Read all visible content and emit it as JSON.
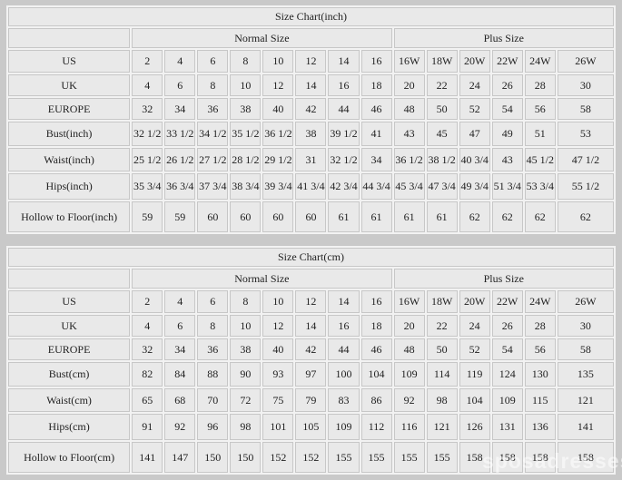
{
  "watermark": "sposadresses",
  "colors": {
    "page_background": "#c9c9c9",
    "data_cell_background": "#e9e9e9",
    "header_cell_background": "#f5f5f5",
    "grid_line": "#c7c7c7",
    "text": "#222222"
  },
  "tables": [
    {
      "title": "Size Chart(inch)",
      "group_headers": [
        "Normal Size",
        "Plus Size"
      ],
      "rows": [
        {
          "label": "US",
          "normal": [
            "2",
            "4",
            "6",
            "8",
            "10",
            "12",
            "14",
            "16"
          ],
          "plus": [
            "16W",
            "18W",
            "20W",
            "22W",
            "24W",
            "26W"
          ]
        },
        {
          "label": "UK",
          "normal": [
            "4",
            "6",
            "8",
            "10",
            "12",
            "14",
            "16",
            "18"
          ],
          "plus": [
            "20",
            "22",
            "24",
            "26",
            "28",
            "30"
          ]
        },
        {
          "label": "EUROPE",
          "normal": [
            "32",
            "34",
            "36",
            "38",
            "40",
            "42",
            "44",
            "46"
          ],
          "plus": [
            "48",
            "50",
            "52",
            "54",
            "56",
            "58"
          ]
        },
        {
          "label": "Bust(inch)",
          "normal": [
            "32 1/2",
            "33 1/2",
            "34 1/2",
            "35 1/2",
            "36 1/2",
            "38",
            "39 1/2",
            "41"
          ],
          "plus": [
            "43",
            "45",
            "47",
            "49",
            "51",
            "53"
          ]
        },
        {
          "label": "Waist(inch)",
          "normal": [
            "25 1/2",
            "26 1/2",
            "27 1/2",
            "28 1/2",
            "29 1/2",
            "31",
            "32 1/2",
            "34"
          ],
          "plus": [
            "36 1/2",
            "38 1/2",
            "40 3/4",
            "43",
            "45 1/2",
            "47 1/2"
          ]
        },
        {
          "label": "Hips(inch)",
          "normal": [
            "35 3/4",
            "36 3/4",
            "37 3/4",
            "38 3/4",
            "39 3/4",
            "41 3/4",
            "42 3/4",
            "44 3/4"
          ],
          "plus": [
            "45 3/4",
            "47 3/4",
            "49 3/4",
            "51 3/4",
            "53 3/4",
            "55 1/2"
          ]
        },
        {
          "label": "Hollow to Floor(inch)",
          "normal": [
            "59",
            "59",
            "60",
            "60",
            "60",
            "60",
            "61",
            "61"
          ],
          "plus": [
            "61",
            "61",
            "62",
            "62",
            "62",
            "62"
          ]
        }
      ]
    },
    {
      "title": "Size Chart(cm)",
      "group_headers": [
        "Normal Size",
        "Plus Size"
      ],
      "rows": [
        {
          "label": "US",
          "normal": [
            "2",
            "4",
            "6",
            "8",
            "10",
            "12",
            "14",
            "16"
          ],
          "plus": [
            "16W",
            "18W",
            "20W",
            "22W",
            "24W",
            "26W"
          ]
        },
        {
          "label": "UK",
          "normal": [
            "4",
            "6",
            "8",
            "10",
            "12",
            "14",
            "16",
            "18"
          ],
          "plus": [
            "20",
            "22",
            "24",
            "26",
            "28",
            "30"
          ]
        },
        {
          "label": "EUROPE",
          "normal": [
            "32",
            "34",
            "36",
            "38",
            "40",
            "42",
            "44",
            "46"
          ],
          "plus": [
            "48",
            "50",
            "52",
            "54",
            "56",
            "58"
          ]
        },
        {
          "label": "Bust(cm)",
          "normal": [
            "82",
            "84",
            "88",
            "90",
            "93",
            "97",
            "100",
            "104"
          ],
          "plus": [
            "109",
            "114",
            "119",
            "124",
            "130",
            "135"
          ]
        },
        {
          "label": "Waist(cm)",
          "normal": [
            "65",
            "68",
            "70",
            "72",
            "75",
            "79",
            "83",
            "86"
          ],
          "plus": [
            "92",
            "98",
            "104",
            "109",
            "115",
            "121"
          ]
        },
        {
          "label": "Hips(cm)",
          "normal": [
            "91",
            "92",
            "96",
            "98",
            "101",
            "105",
            "109",
            "112"
          ],
          "plus": [
            "116",
            "121",
            "126",
            "131",
            "136",
            "141"
          ]
        },
        {
          "label": "Hollow to Floor(cm)",
          "normal": [
            "141",
            "147",
            "150",
            "150",
            "152",
            "152",
            "155",
            "155"
          ],
          "plus": [
            "155",
            "155",
            "158",
            "158",
            "158",
            "158"
          ]
        }
      ]
    }
  ]
}
